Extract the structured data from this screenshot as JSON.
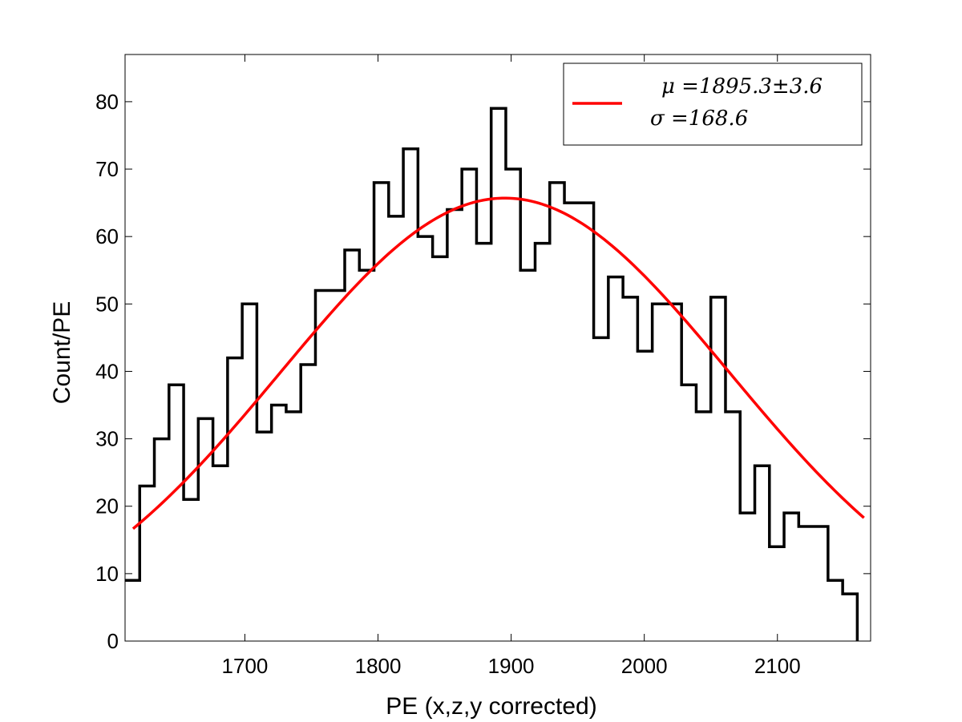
{
  "chart_data": {
    "type": "bar",
    "xlabel": "PE (x,z,y corrected)",
    "ylabel": "Count/PE",
    "xlim": [
      1610,
      2170
    ],
    "ylim": [
      0,
      87
    ],
    "xticks": [
      1700,
      1800,
      1900,
      2000,
      2100
    ],
    "yticks": [
      0,
      10,
      20,
      30,
      40,
      50,
      60,
      70,
      80
    ],
    "grid": false,
    "legend_position": "top-right",
    "bin_width": 11,
    "bin_edges_start": 1610,
    "histogram": {
      "name": "",
      "color": "#000000",
      "counts": [
        9,
        23,
        30,
        38,
        21,
        33,
        26,
        42,
        50,
        31,
        35,
        34,
        41,
        52,
        52,
        58,
        55,
        68,
        63,
        73,
        60,
        57,
        64,
        70,
        59,
        79,
        70,
        55,
        59,
        68,
        65,
        65,
        45,
        54,
        51,
        43,
        50,
        50,
        38,
        34,
        51,
        34,
        19,
        26,
        14,
        19,
        17,
        17,
        9,
        7
      ]
    },
    "fit": {
      "type": "gaussian",
      "color": "#ff0000",
      "amplitude": 65.7,
      "mu": 1895.3,
      "sigma": 168.6,
      "x_range": [
        1616,
        2165
      ]
    },
    "legend": {
      "line1": "μ =1895.3±3.6",
      "line2": "σ =168.6"
    }
  }
}
